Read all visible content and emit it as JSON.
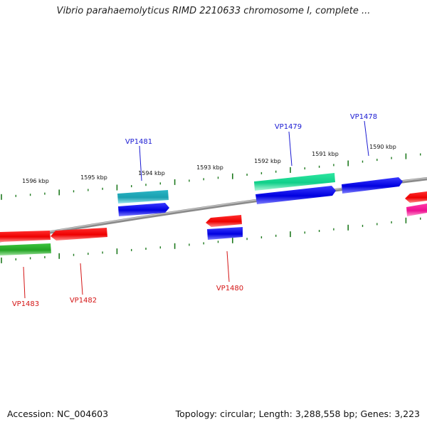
{
  "header": {
    "title": "Vibrio parahaemolyticus RIMD 2210633 chromosome I, complete ..."
  },
  "footer": {
    "accession": "Accession: NC_004603",
    "summary": "Topology: circular; Length: 3,288,558 bp; Genes: 3,223"
  },
  "ticks": [
    {
      "label": "1596 kbp"
    },
    {
      "label": "1595 kbp"
    },
    {
      "label": "1594 kbp"
    },
    {
      "label": "1593 kbp"
    },
    {
      "label": "1592 kbp"
    },
    {
      "label": "1591 kbp"
    },
    {
      "label": "1590 kbp"
    }
  ],
  "genes": [
    {
      "name": "VP1481",
      "strand": "plus"
    },
    {
      "name": "VP1479",
      "strand": "plus"
    },
    {
      "name": "VP1478",
      "strand": "plus"
    },
    {
      "name": "VP1480",
      "strand": "minus"
    },
    {
      "name": "VP1482",
      "strand": "minus"
    },
    {
      "name": "VP1483",
      "strand": "minus"
    }
  ],
  "colors": {
    "plus_label": "#1a1ad2",
    "minus_label": "#d41515",
    "tick": "#1f7a1f",
    "backbone": "#808080"
  }
}
